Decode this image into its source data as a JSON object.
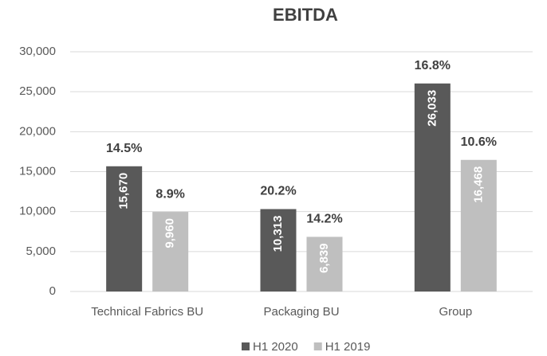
{
  "chart_data": {
    "type": "bar",
    "title": "EBITDA",
    "categories": [
      "Technical Fabrics BU",
      "Packaging BU",
      "Group"
    ],
    "series": [
      {
        "name": "H1 2020",
        "color": "#595959",
        "values": [
          15670,
          10313,
          26033
        ],
        "value_labels": [
          "15,670",
          "10,313",
          "26,033"
        ],
        "annotations": [
          "14.5%",
          "20.2%",
          "16.8%"
        ]
      },
      {
        "name": "H1 2019",
        "color": "#bfbfbf",
        "values": [
          9960,
          6839,
          16468
        ],
        "value_labels": [
          "9,960",
          "6,839",
          "16,468"
        ],
        "annotations": [
          "8.9%",
          "14.2%",
          "10.6%"
        ]
      }
    ],
    "ylim": [
      0,
      30000
    ],
    "yticks": [
      0,
      {
        "value": 5000,
        "label": "5,000"
      },
      {
        "value": 10000,
        "label": "10,000"
      },
      {
        "value": 15000,
        "label": "15,000"
      },
      {
        "value": 20000,
        "label": "20,000"
      },
      {
        "value": 25000,
        "label": "25,000"
      },
      {
        "value": 30000,
        "label": "30,000"
      }
    ],
    "grid": true,
    "legend": "bottom"
  }
}
